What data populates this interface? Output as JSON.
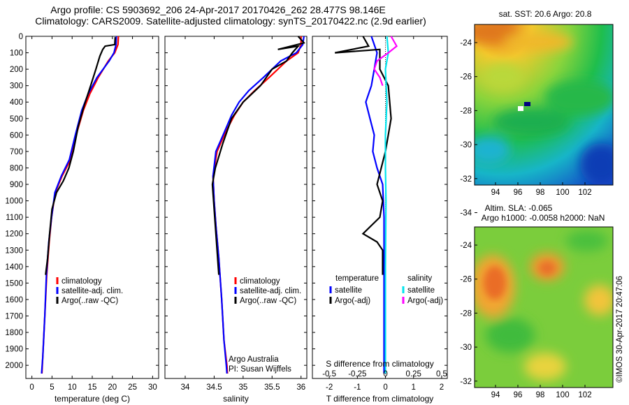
{
  "header": {
    "line1": "Argo profile: CS 5903692_206 24-Apr-2017 20170426_262 28.477S 98.146E",
    "line2": "Climatology: CARS2009. Satellite-adjusted climatology: synTS_20170422.nc (2.9d earlier)"
  },
  "colors": {
    "climatology": "#ff0000",
    "satellite_adj": "#0000ff",
    "argo": "#000000",
    "satellite_sal": "#00e5ee",
    "argo_sal": "#ff00ff"
  },
  "chart_data": [
    {
      "type": "line",
      "xlabel": "temperature (deg C)",
      "ylim": [
        2080,
        0
      ],
      "xlim": [
        -1.5,
        31.5
      ],
      "xticks": [
        0,
        5,
        10,
        15,
        20,
        25,
        30
      ],
      "yticks": [
        0,
        100,
        200,
        300,
        400,
        500,
        600,
        700,
        800,
        900,
        1000,
        1100,
        1200,
        1300,
        1400,
        1500,
        1600,
        1700,
        1800,
        1900,
        2000
      ],
      "legend": [
        "climatology",
        "satellite-adj. clim.",
        "Argo(..raw -QC)"
      ],
      "series": [
        {
          "name": "climatology",
          "color": "#ff0000",
          "x": [
            21.5,
            21.4,
            20.6,
            19.0,
            16.5,
            14.4,
            12.8,
            11.0,
            9.6,
            7.5,
            5.8,
            4.9,
            4.3,
            3.7,
            3.2,
            2.7,
            2.5
          ],
          "y": [
            0,
            50,
            100,
            150,
            250,
            350,
            450,
            600,
            750,
            850,
            950,
            1100,
            1250,
            1450,
            1700,
            1950,
            2050
          ]
        },
        {
          "name": "satellite-adj. clim.",
          "color": "#0000ff",
          "x": [
            21.0,
            20.9,
            20.4,
            19.2,
            16.2,
            14.0,
            12.4,
            10.8,
            9.3,
            7.3,
            5.7,
            4.9,
            4.2,
            3.6,
            3.2,
            2.7,
            2.4
          ],
          "y": [
            0,
            50,
            100,
            150,
            250,
            350,
            450,
            600,
            750,
            850,
            950,
            1100,
            1250,
            1450,
            1700,
            1950,
            2050
          ]
        },
        {
          "name": "Argo(..raw -QC)",
          "color": "#000000",
          "x": [
            20.7,
            20.6,
            18.2,
            17.6,
            16.9,
            15.9,
            14.6,
            13.0,
            11.5,
            10.3,
            9.2,
            7.8,
            6.1,
            5.0,
            4.4,
            3.9,
            3.4
          ],
          "y": [
            5,
            50,
            60,
            80,
            120,
            200,
            300,
            420,
            550,
            700,
            800,
            880,
            950,
            1050,
            1200,
            1350,
            1450
          ]
        }
      ]
    },
    {
      "type": "line",
      "xlabel": "salinity",
      "ylim": [
        2080,
        0
      ],
      "xlim": [
        33.65,
        36.1
      ],
      "xticks": [
        34,
        34.5,
        35,
        35.5,
        36
      ],
      "legend": [
        "climatology",
        "satellite-adj. clim.",
        "Argo(..raw -QC)"
      ],
      "annotation": [
        "Argo Australia",
        "PI: Susan Wijffels"
      ],
      "series": [
        {
          "name": "climatology",
          "color": "#ff0000",
          "x": [
            36.0,
            36.0,
            35.95,
            35.75,
            35.45,
            35.2,
            35.0,
            34.85,
            34.7,
            34.55,
            34.48,
            34.5,
            34.53,
            34.58,
            34.63,
            34.67,
            34.72,
            34.73
          ],
          "y": [
            0,
            50,
            100,
            150,
            250,
            330,
            400,
            480,
            580,
            700,
            850,
            1000,
            1150,
            1350,
            1600,
            1850,
            2000,
            2050
          ]
        },
        {
          "name": "satellite-adj. clim.",
          "color": "#0000ff",
          "x": [
            36.05,
            36.03,
            35.92,
            35.65,
            35.35,
            35.1,
            34.93,
            34.8,
            34.68,
            34.53,
            34.48,
            34.5,
            34.53,
            34.58,
            34.63,
            34.67,
            34.71,
            34.72
          ],
          "y": [
            0,
            50,
            100,
            150,
            250,
            330,
            400,
            480,
            580,
            700,
            850,
            1000,
            1150,
            1350,
            1600,
            1850,
            2000,
            2050
          ]
        },
        {
          "name": "Argo(..raw -QC)",
          "color": "#000000",
          "x": [
            35.95,
            36.05,
            35.6,
            35.95,
            35.85,
            35.75,
            35.5,
            35.3,
            35.0,
            34.8,
            34.65,
            34.52,
            34.47,
            34.5,
            34.53,
            34.56,
            34.58
          ],
          "y": [
            0,
            40,
            80,
            60,
            100,
            150,
            200,
            300,
            400,
            500,
            650,
            800,
            900,
            1050,
            1200,
            1350,
            1450
          ]
        }
      ]
    },
    {
      "type": "line",
      "xlabel": "T difference from climatology",
      "xlabel_top": "S difference from climatology",
      "ylim": [
        2080,
        0
      ],
      "xlim": [
        -2.6,
        2.2
      ],
      "xticks": [
        -2,
        -1,
        0,
        1,
        2
      ],
      "xticks_top": [
        -0.5,
        -0.25,
        0,
        0.25,
        0.5
      ],
      "legend_headers": [
        "temperature",
        "salinity"
      ],
      "legend": [
        "satellite",
        "Argo(-adj)",
        "satellite",
        "Argo(-adj)"
      ],
      "series": [
        {
          "name": "satellite",
          "color": "#0000ff",
          "x": [
            -0.5,
            -0.3,
            -0.4,
            -0.5,
            -0.7,
            -0.55,
            -0.4,
            -0.45,
            -0.3,
            -0.1,
            -0.05,
            -0.05,
            -0.05,
            -0.05
          ],
          "y": [
            0,
            100,
            200,
            300,
            400,
            500,
            600,
            700,
            800,
            900,
            1100,
            1400,
            1700,
            2050
          ]
        },
        {
          "name": "Argo(-adj)",
          "color": "#000000",
          "x": [
            -0.8,
            -0.6,
            -1.8,
            -0.2,
            -0.2,
            0.1,
            0.2,
            0.0,
            -0.3,
            -0.1,
            -0.2,
            -0.8,
            -0.3,
            -0.1,
            -0.1
          ],
          "y": [
            0,
            60,
            100,
            80,
            200,
            300,
            500,
            700,
            900,
            1000,
            1100,
            1200,
            1250,
            1300,
            1450
          ]
        },
        {
          "name": "satellite",
          "color": "#00e5ee",
          "x": [
            0.05,
            0.1,
            0.0,
            0.05,
            0.0,
            0.0,
            0.02,
            0.0,
            0.0
          ],
          "y": [
            0,
            100,
            200,
            400,
            600,
            800,
            1000,
            1400,
            2050
          ]
        },
        {
          "name": "Argo(-adj)",
          "color": "#ff00ff",
          "x": [
            0.2,
            0.4,
            0.1,
            -0.3,
            -0.4,
            -0.2,
            -0.1
          ],
          "y": [
            0,
            60,
            100,
            150,
            200,
            250,
            300
          ]
        }
      ]
    },
    {
      "type": "heatmap",
      "title": "sat. SST: 20.6  Argo: 20.8",
      "xticks": [
        94,
        96,
        98,
        100,
        102
      ],
      "yticks": [
        -24,
        -26,
        -28,
        -30,
        -32,
        -34
      ]
    },
    {
      "type": "heatmap",
      "title": "Altim. SLA: -0.065",
      "subtitle": "Argo h1000: -0.0058 h2000: NaN",
      "xticks": [
        94,
        96,
        98,
        100,
        102
      ],
      "yticks": [
        -24,
        -26,
        -28,
        -30,
        -32,
        -34
      ]
    }
  ],
  "footer": {
    "stamp": "©IMOS 30-Apr-2017 20:47:06"
  }
}
